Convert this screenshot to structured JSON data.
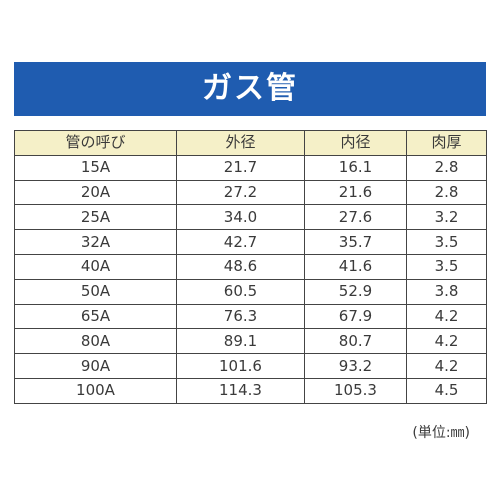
{
  "title": "ガス管",
  "table": {
    "headers": [
      "管の呼び",
      "外径",
      "内径",
      "肉厚"
    ],
    "rows": [
      [
        "15A",
        "21.7",
        "16.1",
        "2.8"
      ],
      [
        "20A",
        "27.2",
        "21.6",
        "2.8"
      ],
      [
        "25A",
        "34.0",
        "27.6",
        "3.2"
      ],
      [
        "32A",
        "42.7",
        "35.7",
        "3.5"
      ],
      [
        "40A",
        "48.6",
        "41.6",
        "3.5"
      ],
      [
        "50A",
        "60.5",
        "52.9",
        "3.8"
      ],
      [
        "65A",
        "76.3",
        "67.9",
        "4.2"
      ],
      [
        "80A",
        "89.1",
        "80.7",
        "4.2"
      ],
      [
        "90A",
        "101.6",
        "93.2",
        "4.2"
      ],
      [
        "100A",
        "114.3",
        "105.3",
        "4.5"
      ]
    ]
  },
  "unit_note": "(単位:㎜)",
  "colors": {
    "title_bg": "#1f5cb0",
    "title_text": "#ffffff",
    "header_bg": "#f5f0c8",
    "border": "#444444"
  }
}
